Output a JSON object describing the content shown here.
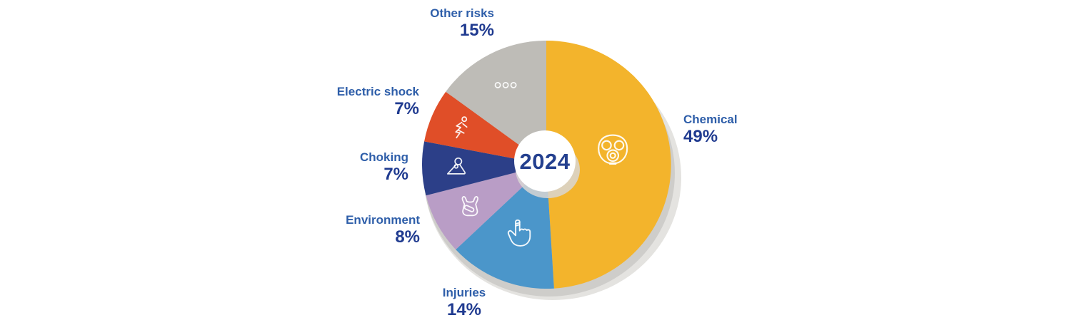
{
  "chart_data": {
    "type": "pie",
    "title": "",
    "center_label": "2024",
    "unit": "%",
    "start_angle_deg": 0,
    "direction": "clockwise",
    "legend_position": "around",
    "slices": [
      {
        "label": "Chemical",
        "value": 49,
        "percent_label": "49%",
        "color": "#F3B42C",
        "icon": "gas-mask-icon"
      },
      {
        "label": "Injuries",
        "value": 14,
        "percent_label": "14%",
        "color": "#4B96CA",
        "icon": "bandaged-finger-icon"
      },
      {
        "label": "Environment",
        "value": 8,
        "percent_label": "8%",
        "color": "#B99DC6",
        "icon": "plastic-bag-icon"
      },
      {
        "label": "Choking",
        "value": 7,
        "percent_label": "7%",
        "color": "#2C3F88",
        "icon": "choking-person-icon"
      },
      {
        "label": "Electric shock",
        "value": 7,
        "percent_label": "7%",
        "color": "#E04E28",
        "icon": "electric-shock-person-icon"
      },
      {
        "label": "Other risks",
        "value": 15,
        "percent_label": "15%",
        "color": "#BEBCB7",
        "icon": "three-dots-icon"
      }
    ],
    "colors": {
      "label_name": "#2E5EA9",
      "label_percent": "#203B90",
      "center_year": "#24408F",
      "depth_shadow": "#CECDCA",
      "background": "#FFFFFF"
    }
  }
}
